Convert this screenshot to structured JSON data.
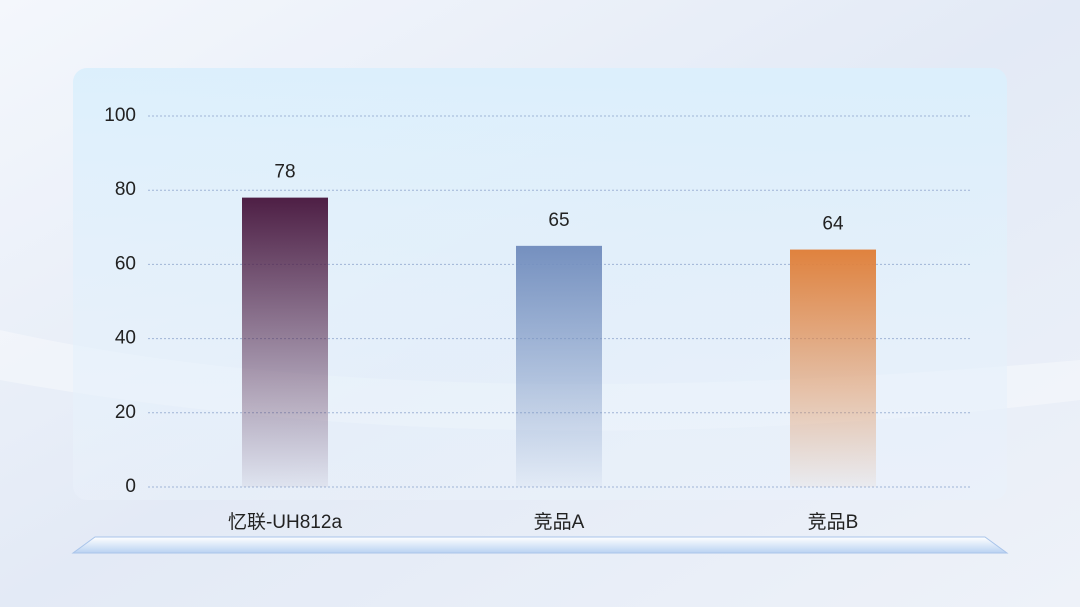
{
  "chart_data": {
    "type": "bar",
    "categories": [
      "忆联-UH812a",
      "竞品A",
      "竞品B"
    ],
    "values": [
      78,
      65,
      64
    ],
    "colors": [
      "#4e1f45",
      "#7590bf",
      "#e0823e"
    ],
    "ylim": [
      0,
      100
    ],
    "yticks": [
      0,
      20,
      40,
      60,
      80,
      100
    ],
    "grid": true
  }
}
